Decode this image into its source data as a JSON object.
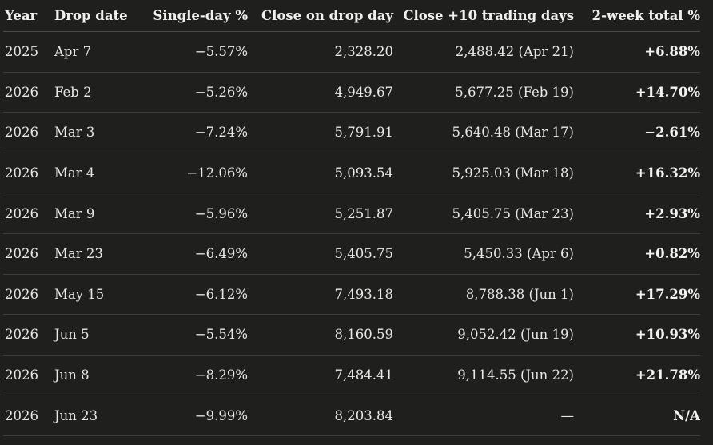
{
  "headers": {
    "year": "Year",
    "drop_date": "Drop date",
    "single_day": "Single-day %",
    "close_drop": "Close on drop day",
    "close_10": "Close +10 trading days",
    "two_week": "2-week total %"
  },
  "rows": [
    {
      "year": "2025",
      "drop_date": "Apr 7",
      "single_day": "−5.57%",
      "close_drop": "2,328.20",
      "close_10": "2,488.42 (Apr 21)",
      "two_week": "+6.88%"
    },
    {
      "year": "2026",
      "drop_date": "Feb 2",
      "single_day": "−5.26%",
      "close_drop": "4,949.67",
      "close_10": "5,677.25 (Feb 19)",
      "two_week": "+14.70%"
    },
    {
      "year": "2026",
      "drop_date": "Mar 3",
      "single_day": "−7.24%",
      "close_drop": "5,791.91",
      "close_10": "5,640.48 (Mar 17)",
      "two_week": "−2.61%"
    },
    {
      "year": "2026",
      "drop_date": "Mar 4",
      "single_day": "−12.06%",
      "close_drop": "5,093.54",
      "close_10": "5,925.03 (Mar 18)",
      "two_week": "+16.32%"
    },
    {
      "year": "2026",
      "drop_date": "Mar 9",
      "single_day": "−5.96%",
      "close_drop": "5,251.87",
      "close_10": "5,405.75 (Mar 23)",
      "two_week": "+2.93%"
    },
    {
      "year": "2026",
      "drop_date": "Mar 23",
      "single_day": "−6.49%",
      "close_drop": "5,405.75",
      "close_10": "5,450.33 (Apr 6)",
      "two_week": "+0.82%"
    },
    {
      "year": "2026",
      "drop_date": "May 15",
      "single_day": "−6.12%",
      "close_drop": "7,493.18",
      "close_10": "8,788.38 (Jun 1)",
      "two_week": "+17.29%"
    },
    {
      "year": "2026",
      "drop_date": "Jun 5",
      "single_day": "−5.54%",
      "close_drop": "8,160.59",
      "close_10": "9,052.42 (Jun 19)",
      "two_week": "+10.93%"
    },
    {
      "year": "2026",
      "drop_date": "Jun 8",
      "single_day": "−8.29%",
      "close_drop": "7,484.41",
      "close_10": "9,114.55 (Jun 22)",
      "two_week": "+21.78%"
    },
    {
      "year": "2026",
      "drop_date": "Jun 23",
      "single_day": "−9.99%",
      "close_drop": "8,203.84",
      "close_10": "—",
      "two_week": "N/A"
    }
  ]
}
